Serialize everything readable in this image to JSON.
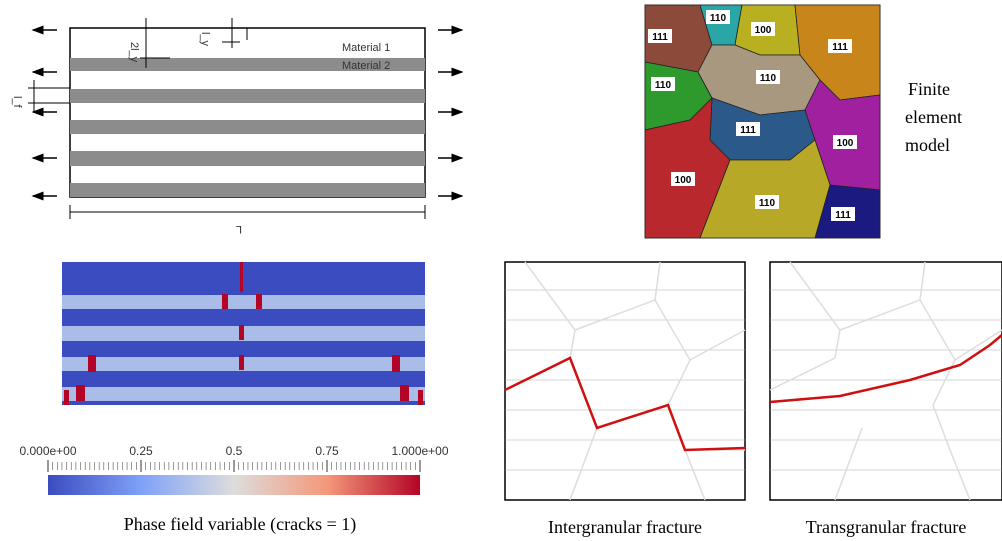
{
  "diagram": {
    "labels": {
      "material_1": "Material 1",
      "material_2": "Material 2",
      "two_ly": "2l_y",
      "ly": "l_y",
      "lf": "l_f",
      "length": "L"
    }
  },
  "grains": {
    "labels": [
      "111",
      "110",
      "100",
      "111",
      "110",
      "110",
      "111",
      "100",
      "100",
      "110",
      "111"
    ],
    "caption_lines": [
      "Finite",
      "element",
      "model"
    ]
  },
  "phase_field": {
    "colorbar_ticks": [
      {
        "value": 0,
        "label": "0.000e+00"
      },
      0.25,
      0.5,
      0.75,
      {
        "value": 1,
        "label": "1.000e+00"
      }
    ],
    "colorbar_range": [
      0,
      1
    ],
    "caption": "Phase field variable (cracks = 1)"
  },
  "fracture": {
    "captions": [
      "Intergranular fracture",
      "Transgranular fracture"
    ]
  }
}
